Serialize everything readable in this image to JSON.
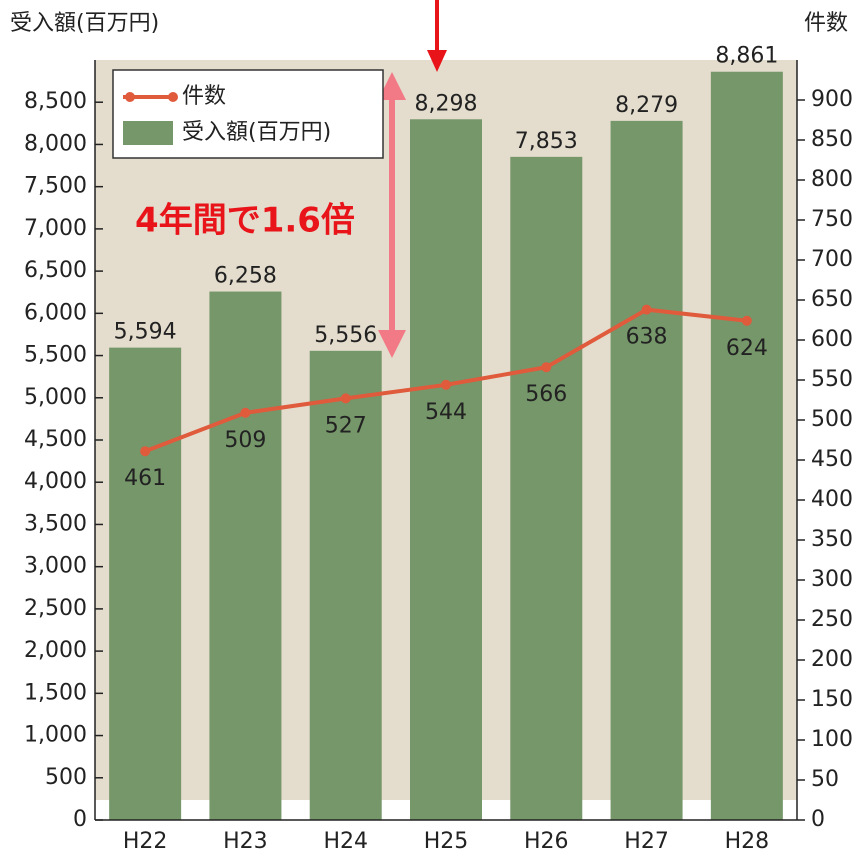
{
  "chart_data": {
    "type": "bar_line",
    "y_label": "受入額(百万円)",
    "y2_label": "件数",
    "annotation": "4年間で1.6倍",
    "categories": [
      "H22",
      "H23",
      "H24",
      "H25",
      "H26",
      "H27",
      "H28"
    ],
    "series": [
      {
        "name": "件数",
        "type": "line",
        "axis": "y2",
        "color": "#e05a3c",
        "values": [
          461,
          509,
          527,
          544,
          566,
          638,
          624
        ]
      },
      {
        "name": "受入額(百万円)",
        "type": "bar",
        "color": "#76976a",
        "values": [
          5594,
          6258,
          5556,
          8298,
          7853,
          8279,
          8861
        ],
        "value_labels": [
          "5,594",
          "6,258",
          "5,556",
          "8,298",
          "7,853",
          "8,279",
          "8,861"
        ]
      }
    ],
    "ylim": [
      0,
      9000
    ],
    "yticks": [
      0,
      500,
      {
        "value": 1000,
        "label": "1,000"
      },
      {
        "value": 1500,
        "label": "1,500"
      },
      {
        "value": 2000,
        "label": "2,000"
      },
      {
        "value": 2500,
        "label": "2,500"
      },
      {
        "value": 3000,
        "label": "3,000"
      },
      {
        "value": 3500,
        "label": "3,500"
      },
      {
        "value": 4000,
        "label": "4,000"
      },
      {
        "value": 4500,
        "label": "4,500"
      },
      {
        "value": 5000,
        "label": "5,000"
      },
      {
        "value": 5500,
        "label": "5,500"
      },
      {
        "value": 6000,
        "label": "6,000"
      },
      {
        "value": 6500,
        "label": "6,500"
      },
      {
        "value": 7000,
        "label": "7,000"
      },
      {
        "value": 7500,
        "label": "7,500"
      },
      {
        "value": 8000,
        "label": "8,000"
      },
      {
        "value": 8500,
        "label": "8,500"
      }
    ],
    "y2lim": [
      0,
      950
    ],
    "y2ticks": [
      0,
      50,
      100,
      150,
      200,
      250,
      300,
      350,
      400,
      450,
      500,
      550,
      600,
      650,
      700,
      750,
      800,
      850,
      900
    ],
    "legend": "upper left"
  }
}
